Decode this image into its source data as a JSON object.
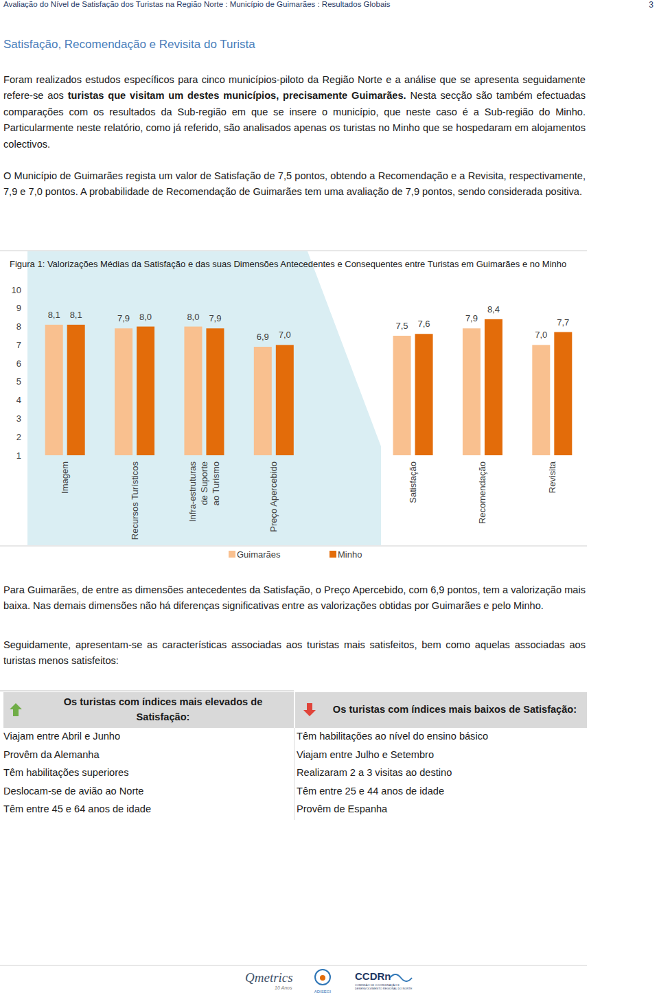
{
  "header": {
    "title": "Avaliação do Nível de Satisfação dos Turistas na Região Norte : Município de Guimarães : Resultados Globais",
    "page": "3"
  },
  "section_title": "Satisfação, Recomendação e Revisita do Turista",
  "intro": [
    [
      {
        "text": "Foram realizados estudos específicos para cinco municípios-piloto da Região Norte e a análise que se apresenta seguidamente refere-se aos ",
        "bold": false
      },
      {
        "text": "turistas que visitam um destes municípios, precisamente Guimarães.",
        "bold": true
      },
      {
        "text": " Nesta secção são também efectuadas comparações com os resultados da Sub-região em que se insere o município, que neste caso é a Sub-região do Minho. Particularmente neste relatório, como já referido, são analisados apenas os turistas no Minho que se hospedaram em alojamentos colectivos.",
        "bold": false
      }
    ],
    [
      {
        "text": "O Município de Guimarães regista um valor de Satisfação de 7,5 pontos, obtendo a Recomendação e a Revisita, respectivamente, 7,9 e 7,0 pontos. A probabilidade de Recomendação de Guimarães tem uma avaliação de 7,9 pontos, sendo considerada positiva.",
        "bold": false
      }
    ]
  ],
  "chart_data": {
    "type": "bar",
    "title": "Figura 1: Valorizações Médias da Satisfação e das suas Dimensões Antecedentes e Consequentes entre Turistas em Guimarães e no Minho",
    "categories": [
      "Imagem",
      "Recursos Turísticos",
      "Infra-estruturas\nde Suporte\nao Turismo",
      "Preço Apercebido",
      null,
      "Satisfação",
      "Recomendação",
      "Revisita"
    ],
    "series": [
      {
        "name": "Guimarães",
        "color": "#f9c08f",
        "values": [
          8.1,
          7.9,
          8.0,
          6.9,
          null,
          7.5,
          7.9,
          7.0
        ],
        "value_labels": [
          "8,1",
          "7,9",
          "8,0",
          "6,9",
          null,
          "7,5",
          "7,9",
          "7,0"
        ]
      },
      {
        "name": "Minho",
        "color": "#e36c0a",
        "values": [
          8.1,
          8.0,
          7.9,
          7.0,
          null,
          7.6,
          8.4,
          7.7
        ],
        "value_labels": [
          "8,1",
          "8,0",
          "7,9",
          "7,0",
          null,
          "7,6",
          "8,4",
          "7,7"
        ]
      }
    ],
    "ylim": [
      1,
      10
    ],
    "yticks": [
      1,
      2,
      3,
      4,
      5,
      6,
      7,
      8,
      9,
      10
    ],
    "grid": false,
    "legend": "bottom",
    "data_labels": true
  },
  "after": [
    [
      {
        "text": "Para Guimarães, de entre as dimensões antecedentes da Satisfação, o Preço Apercebido, com 6,9 pontos, tem a valorização mais baixa. Nas demais dimensões não há diferenças significativas entre as valorizações obtidas por Guimarães e pelo Minho.",
        "bold": false
      }
    ],
    [
      {
        "text": "Seguidamente, apresentam-se as características associadas aos turistas mais satisfeitos, bem como aquelas associadas aos turistas menos satisfeitos:",
        "bold": false
      }
    ]
  ],
  "table": {
    "headers": [
      "Os turistas com índices mais elevados de Satisfação:",
      "Os turistas com índices mais baixos de Satisfação:"
    ],
    "rows": [
      [
        "Viajam entre Abril e Junho",
        "Têm habilitações ao nível do ensino básico"
      ],
      [
        "Provêm da Alemanha",
        "Viajam entre Julho e Setembro"
      ],
      [
        "Têm habilitações superiores",
        "Realizaram 2 a 3 visitas ao destino"
      ],
      [
        "Deslocam-se de avião ao Norte",
        "Têm entre 25 e 44 anos de idade"
      ],
      [
        "Têm entre 45 e 64 anos de idade",
        "Provêm de Espanha"
      ]
    ]
  },
  "footer": {
    "qmetrics": "Qmetrics",
    "qmetrics_sub": "10 Anos",
    "adisegi": "ADISEGI",
    "ccdrn": "CCDRn",
    "ccdrn_sub": "COMISSÃO DE COORDENAÇÃO E DESENVOLVIMENTO REGIONAL DO NORTE"
  }
}
